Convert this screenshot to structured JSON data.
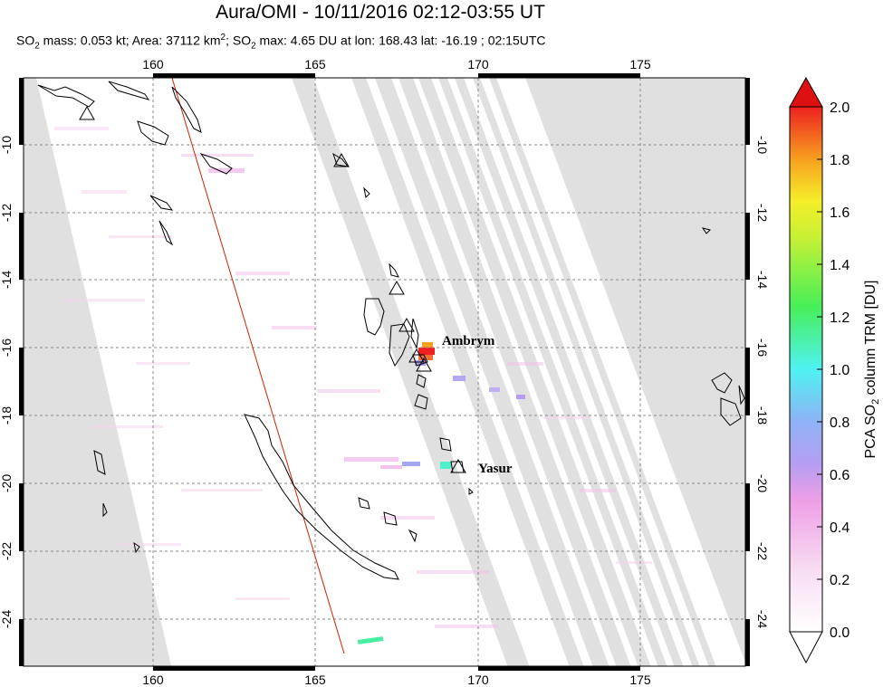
{
  "title": "Aura/OMI - 10/11/2016 02:12-03:55 UT",
  "subtitle": {
    "mass": "SO",
    "mass_sub": "2",
    "mass_rest": " mass: 0.053 kt; Area: 37112 km",
    "area_sup": "2",
    "max_pre": "; SO",
    "max_sub": "2",
    "max_rest": " max: 4.65 DU at lon: 168.43 lat: -16.19 ; 02:15UTC"
  },
  "map": {
    "lon_ticks": [
      "160",
      "165",
      "170",
      "175"
    ],
    "lat_ticks": [
      "-10",
      "-12",
      "-14",
      "-16",
      "-18",
      "-20",
      "-22",
      "-24"
    ],
    "volcanoes": [
      {
        "name": "Ambrym",
        "lon": 168.1,
        "lat": -16.25
      },
      {
        "name": "Yasur",
        "lon": 169.45,
        "lat": -19.52
      }
    ],
    "colors": {
      "swath_gap": "#e0e0e0",
      "grid": "#888888",
      "track_line": "#cc2200"
    }
  },
  "colorbar": {
    "label_pre": "PCA SO",
    "label_sub": "2",
    "label_post": " column TRM [DU]",
    "ticks": [
      "0.0",
      "0.2",
      "0.4",
      "0.6",
      "0.8",
      "1.0",
      "1.2",
      "1.4",
      "1.6",
      "1.8",
      "2.0"
    ],
    "range": [
      0.0,
      2.0
    ],
    "colors": [
      "#ffffff",
      "#f7c8ee",
      "#b59ef2",
      "#a4c0f8",
      "#4ff2f2",
      "#47ef58",
      "#f0f03a",
      "#f7a520",
      "#ee2020",
      "#dd1111"
    ]
  }
}
